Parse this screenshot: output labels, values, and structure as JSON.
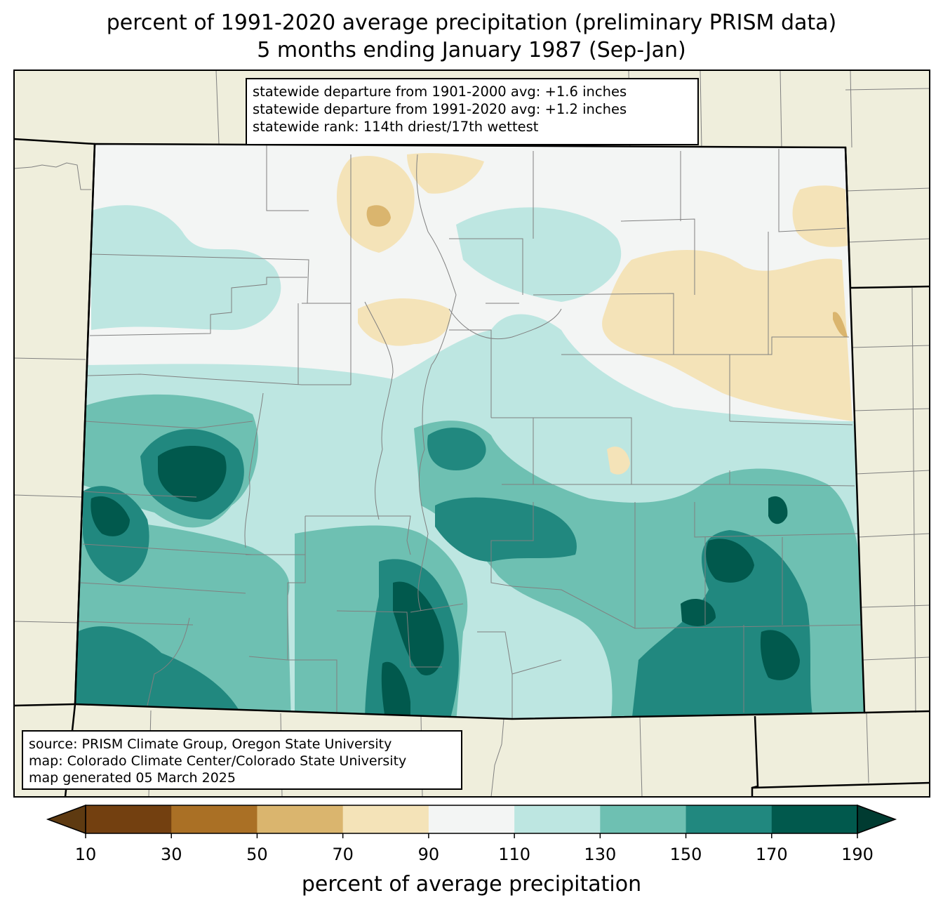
{
  "title": {
    "line1": "percent of 1991-2020 average precipitation (preliminary PRISM data)",
    "line2": "5 months ending January 1987 (Sep-Jan)"
  },
  "stats": {
    "line1": "statewide departure from 1901-2000 avg: +1.6 inches",
    "line2": "statewide departure from 1991-2020 avg: +1.2 inches",
    "line3": "statewide rank: 114th driest/17th wettest"
  },
  "source": {
    "line1": "source: PRISM Climate Group, Oregon State University",
    "line2": "map: Colorado Climate Center/Colorado State University",
    "line3": "map generated 05 March 2025"
  },
  "colorbar": {
    "label": "percent of average precipitation",
    "ticks": [
      "10",
      "30",
      "50",
      "70",
      "90",
      "110",
      "130",
      "150",
      "170",
      "190"
    ],
    "colors": [
      "#734010",
      "#aa7025",
      "#dab56e",
      "#f4e3b8",
      "#f3f5f4",
      "#bde6e1",
      "#6ec0b2",
      "#21887f",
      "#01594d"
    ],
    "under_color": "#5e3a11",
    "over_color": "#003b31"
  },
  "colors": {
    "land": "#efeedc",
    "state_border": "#000000",
    "county_border": "#808080"
  }
}
